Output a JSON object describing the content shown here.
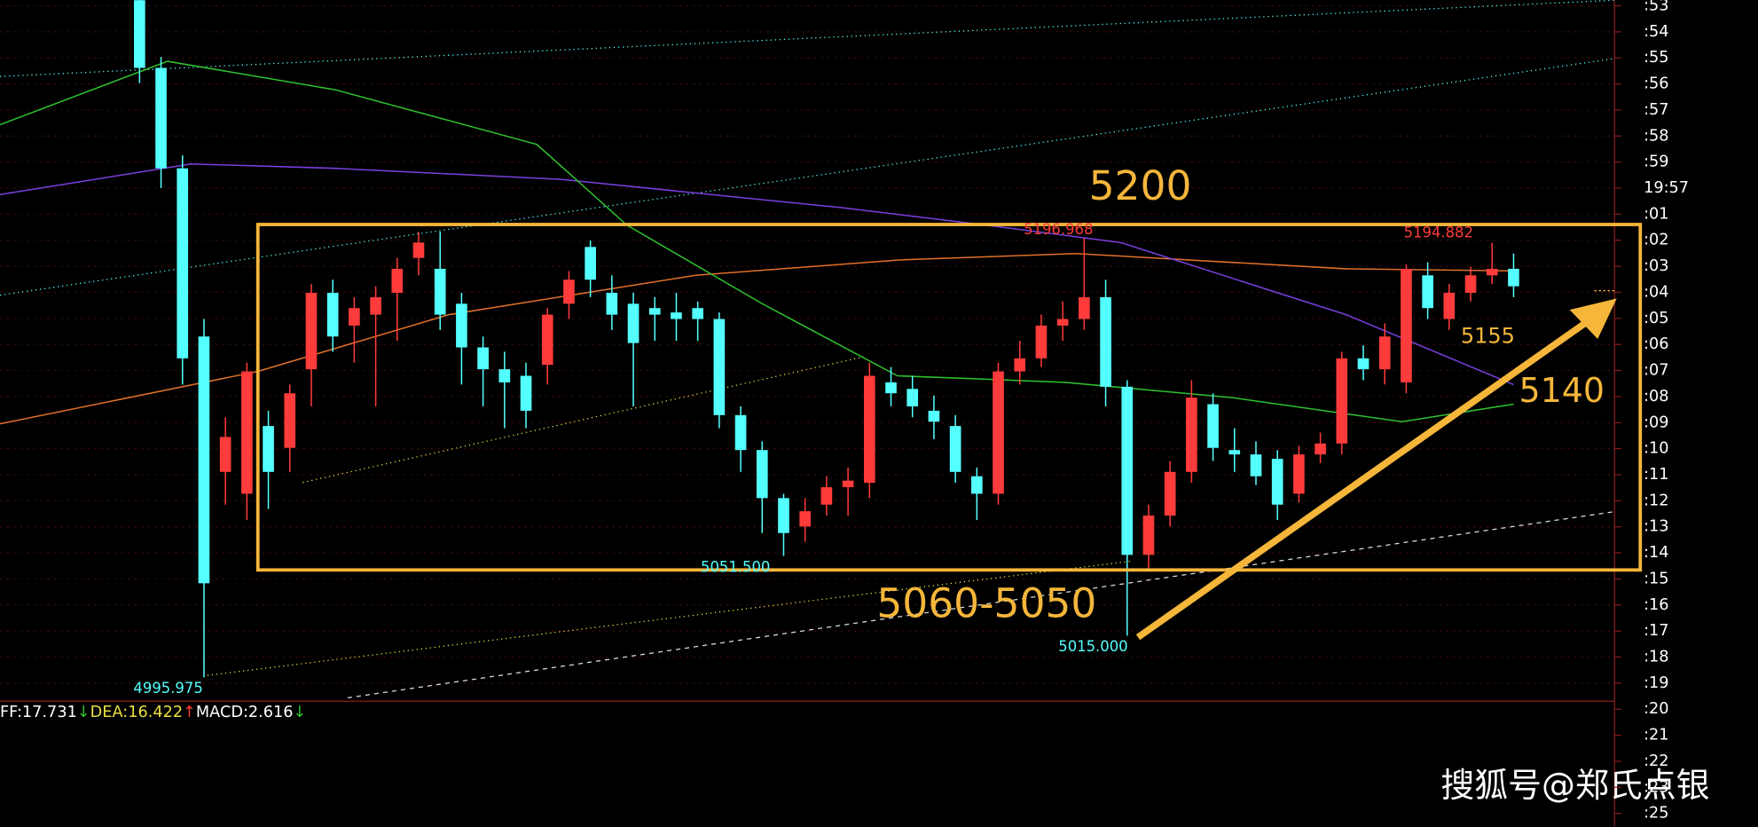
{
  "chart_data": {
    "type": "candlestick",
    "xlim": [
      -6.5,
      68.7
    ],
    "ylim": [
      4985,
      5306
    ],
    "up_color": "#ff3b3b",
    "down_color": "#54ffff",
    "open": [
      5306,
      5275,
      5229,
      5152,
      5090,
      5080,
      5111,
      5101,
      5137,
      5172,
      5157,
      5162,
      5172,
      5188,
      5183,
      5167,
      5147,
      5137,
      5134,
      5139,
      5167,
      5193,
      5172,
      5167,
      5165,
      5163,
      5165,
      5160,
      5116,
      5100,
      5078,
      5065,
      5075,
      5083,
      5085,
      5131,
      5128,
      5118,
      5111,
      5088,
      5080,
      5136,
      5142,
      5157,
      5160,
      5170,
      5129,
      5052,
      5070,
      5090,
      5121,
      5100,
      5098,
      5096,
      5080,
      5098,
      5103,
      5142,
      5137,
      5131,
      5180,
      5160,
      5172,
      5180,
      5183
    ],
    "high": [
      5308,
      5280,
      5235,
      5160,
      5115,
      5140,
      5118,
      5130,
      5176,
      5178,
      5170,
      5175,
      5188,
      5200,
      5200,
      5172,
      5152,
      5145,
      5140,
      5165,
      5182,
      5196,
      5180,
      5172,
      5170,
      5172,
      5168,
      5163,
      5120,
      5104,
      5080,
      5078,
      5088,
      5092,
      5140,
      5138,
      5134,
      5125,
      5116,
      5092,
      5140,
      5150,
      5162,
      5168,
      5196.968,
      5178,
      5132,
      5075,
      5095,
      5132,
      5126,
      5110,
      5104,
      5100,
      5102,
      5108,
      5145,
      5148,
      5158,
      5185,
      5186,
      5176,
      5184,
      5194.882,
      5190
    ],
    "low": [
      5268,
      5220,
      5130,
      4995.975,
      5075,
      5068,
      5073,
      5090,
      5120,
      5145,
      5140,
      5120,
      5150,
      5180,
      5155,
      5130,
      5120,
      5110,
      5110,
      5130,
      5160,
      5170,
      5155,
      5120,
      5150,
      5150,
      5150,
      5110,
      5090,
      5062,
      5051.5,
      5058,
      5070,
      5070,
      5078,
      5120,
      5115,
      5105,
      5085,
      5068,
      5075,
      5130,
      5138,
      5150,
      5155,
      5120,
      5015,
      5045,
      5065,
      5085,
      5095,
      5090,
      5084,
      5068,
      5076,
      5094,
      5098,
      5132,
      5130,
      5126,
      5160,
      5155,
      5168,
      5176,
      5170
    ],
    "close": [
      5275,
      5229,
      5142,
      5039,
      5106,
      5136,
      5090,
      5126,
      5172,
      5152,
      5165,
      5170,
      5183,
      5195,
      5162,
      5147,
      5137,
      5131,
      5118,
      5162,
      5178,
      5178,
      5162,
      5149,
      5162,
      5160,
      5160,
      5116,
      5100,
      5078,
      5062,
      5072,
      5083,
      5086,
      5134,
      5126,
      5120,
      5113,
      5090,
      5080,
      5136,
      5142,
      5157,
      5160,
      5170,
      5129,
      5052,
      5070,
      5090,
      5124,
      5101,
      5098,
      5088,
      5075,
      5098,
      5103,
      5142,
      5137,
      5152,
      5183,
      5165,
      5172,
      5180,
      5183,
      5175
    ],
    "lines": [
      {
        "color": "#e0702a",
        "x": [
          -6.5,
          5.5,
          14.4,
          25.9,
          35.3,
          43.6,
          56.2,
          64
        ],
        "values": [
          5112,
          5136,
          5162,
          5180,
          5187,
          5190,
          5183,
          5182
        ]
      },
      {
        "color": "#7a3fe0",
        "x": [
          -6.5,
          2.4,
          9.1,
          19.6,
          32.7,
          39.4,
          45.7,
          56.2,
          64
        ],
        "values": [
          5217,
          5231,
          5229,
          5224,
          5211,
          5203,
          5195,
          5162,
          5130
        ]
      },
      {
        "color": "#2fc22f",
        "x": [
          -6.5,
          1.3,
          9.1,
          18.5,
          22.7,
          29,
          35.3,
          43.1,
          50.9,
          58.8,
          64
        ],
        "values": [
          5249,
          5278,
          5265,
          5240,
          5203,
          5167,
          5134,
          5131,
          5124,
          5113,
          5121
        ]
      }
    ],
    "axis_labels": [
      ":53",
      ":54",
      ":55",
      ":56",
      ":57",
      ":58",
      ":59",
      "19:57",
      ":01",
      ":02",
      ":03",
      ":04",
      ":05",
      ":06",
      ":07",
      ":08",
      ":09",
      ":10",
      ":11",
      ":12",
      ":13",
      ":14",
      ":15",
      ":16",
      ":17",
      ":18",
      ":19",
      ":20",
      ":21",
      ":22",
      ":23",
      ":25"
    ],
    "price_labels": [
      "5196.968",
      "5194.882",
      "5051.500",
      "5015.000",
      "4995.975"
    ],
    "annotations": [
      "5200",
      "5060-5050",
      "5140",
      "5155"
    ],
    "macd": {
      "dif": "FF:17.731",
      "dif_arrow": "↓",
      "dea": "DEA:16.422",
      "dea_arrow": "↑",
      "macd": "MACD:2.616",
      "macd_arrow": "↓"
    },
    "watermark": "搜狐号@郑氏点银"
  }
}
